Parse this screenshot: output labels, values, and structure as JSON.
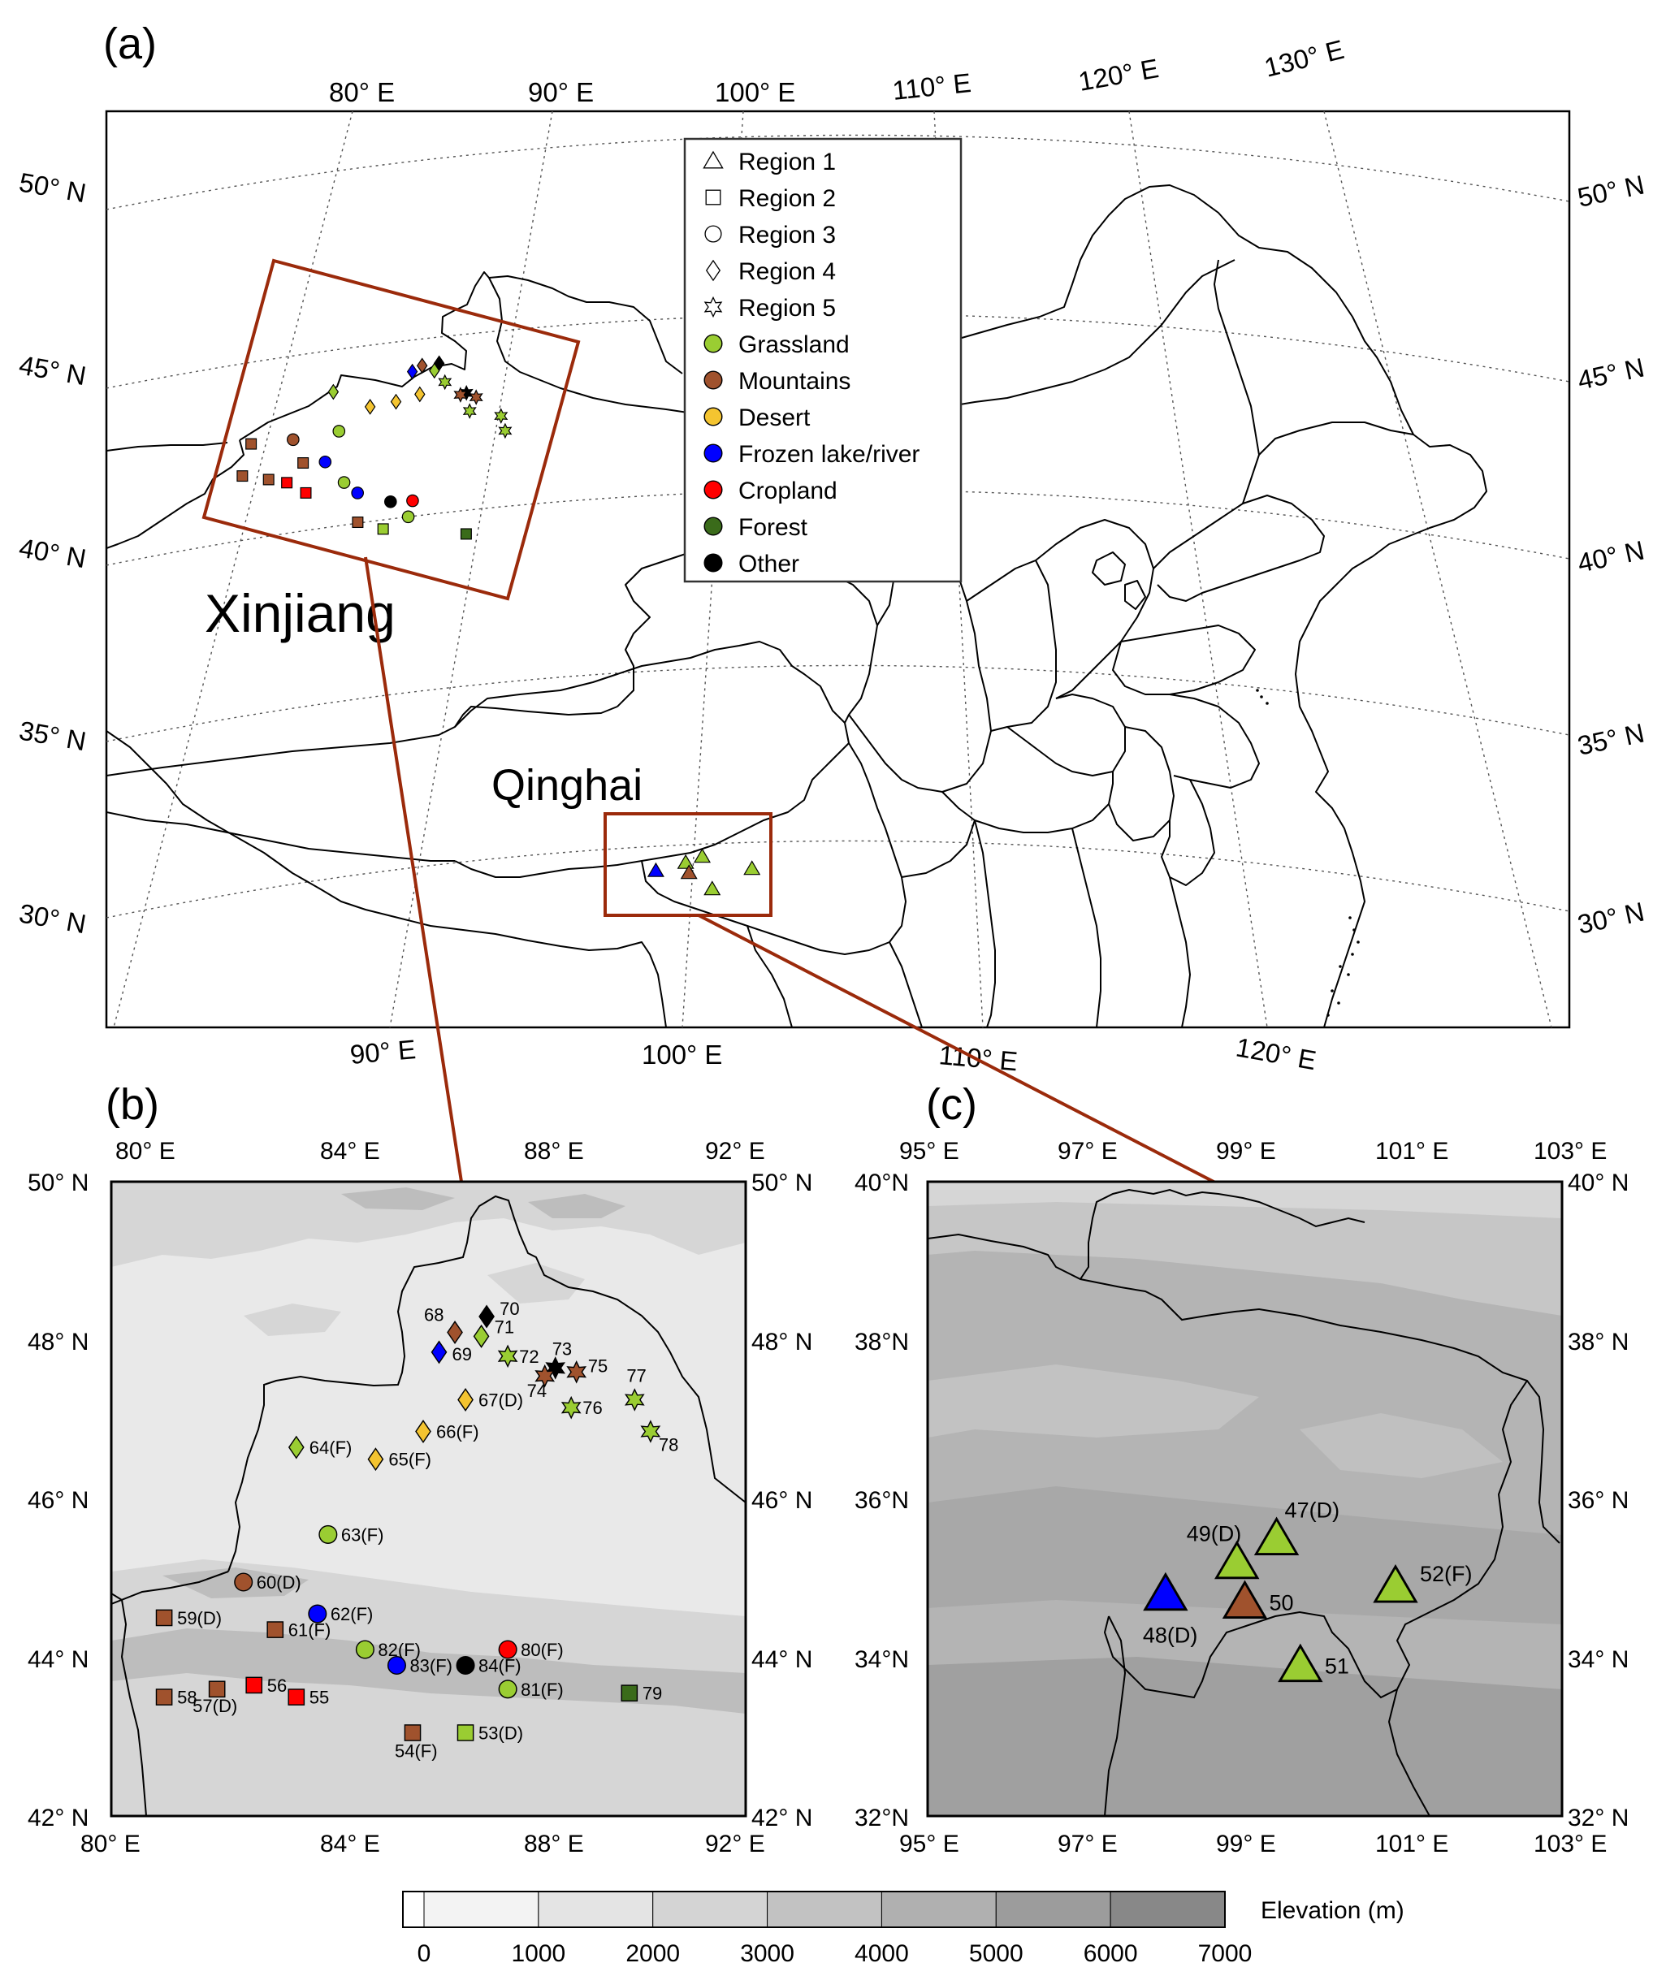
{
  "panels": {
    "a": {
      "label": "(a)",
      "top_lon_ticks": [
        "80° E",
        "90° E",
        "100° E",
        "110° E",
        "120° E",
        "130° E"
      ],
      "bottom_lon_ticks": [
        "90° E",
        "100° E",
        "110° E",
        "120° E"
      ],
      "left_lat_ticks": [
        "50° N",
        "45° N",
        "40° N",
        "35° N",
        "30° N"
      ],
      "right_lat_ticks": [
        "50° N",
        "45° N",
        "40° N",
        "35° N",
        "30° N"
      ],
      "region_labels": {
        "xinjiang": "Xinjiang",
        "qinghai": "Qinghai"
      },
      "legend": {
        "shapes": [
          {
            "symbol": "triangle",
            "label": "Region 1"
          },
          {
            "symbol": "square",
            "label": "Region 2"
          },
          {
            "symbol": "circle",
            "label": "Region 3"
          },
          {
            "symbol": "diamond",
            "label": "Region 4"
          },
          {
            "symbol": "star",
            "label": "Region 5"
          }
        ],
        "colors": [
          {
            "color": "#9acd32",
            "label": "Grassland"
          },
          {
            "color": "#a0522d",
            "label": "Mountains"
          },
          {
            "color": "#f4c430",
            "label": "Desert"
          },
          {
            "color": "#0000ff",
            "label": "Frozen lake/river"
          },
          {
            "color": "#ff0000",
            "label": "Cropland"
          },
          {
            "color": "#3a6b1a",
            "label": "Forest"
          },
          {
            "color": "#000000",
            "label": "Other"
          }
        ]
      }
    },
    "b": {
      "label": "(b)",
      "top_lon_ticks": [
        "80° E",
        "84° E",
        "88° E",
        "92° E"
      ],
      "bottom_lon_ticks": [
        "80° E",
        "84° E",
        "88° E",
        "92° E"
      ],
      "left_lat_ticks": [
        "50° N",
        "48° N",
        "46° N",
        "44° N",
        "42° N"
      ],
      "right_lat_ticks": [
        "50° N",
        "48° N",
        "46° N",
        "44° N",
        "42° N"
      ],
      "sites": [
        {
          "id": "53(D)",
          "lon": 86.7,
          "lat": 43.05,
          "shape": "square",
          "color": "#9acd32"
        },
        {
          "id": "54(F)",
          "lon": 85.7,
          "lat": 43.05,
          "shape": "square",
          "color": "#a0522d"
        },
        {
          "id": "55",
          "lon": 83.5,
          "lat": 43.5,
          "shape": "square",
          "color": "#ff0000"
        },
        {
          "id": "56",
          "lon": 82.7,
          "lat": 43.65,
          "shape": "square",
          "color": "#ff0000"
        },
        {
          "id": "57(D)",
          "lon": 82.0,
          "lat": 43.6,
          "shape": "square",
          "color": "#a0522d"
        },
        {
          "id": "58",
          "lon": 81.0,
          "lat": 43.5,
          "shape": "square",
          "color": "#a0522d"
        },
        {
          "id": "59(D)",
          "lon": 81.0,
          "lat": 44.5,
          "shape": "square",
          "color": "#a0522d"
        },
        {
          "id": "60(D)",
          "lon": 82.5,
          "lat": 44.95,
          "shape": "circle",
          "color": "#a0522d"
        },
        {
          "id": "61(F)",
          "lon": 83.1,
          "lat": 44.35,
          "shape": "square",
          "color": "#a0522d"
        },
        {
          "id": "62(F)",
          "lon": 83.9,
          "lat": 44.55,
          "shape": "circle",
          "color": "#0000ff"
        },
        {
          "id": "63(F)",
          "lon": 84.1,
          "lat": 45.55,
          "shape": "circle",
          "color": "#9acd32"
        },
        {
          "id": "64(F)",
          "lon": 83.5,
          "lat": 46.65,
          "shape": "diamond",
          "color": "#9acd32"
        },
        {
          "id": "65(F)",
          "lon": 85.0,
          "lat": 46.5,
          "shape": "diamond",
          "color": "#f4c430"
        },
        {
          "id": "66(F)",
          "lon": 85.9,
          "lat": 46.85,
          "shape": "diamond",
          "color": "#f4c430"
        },
        {
          "id": "67(D)",
          "lon": 86.7,
          "lat": 47.25,
          "shape": "diamond",
          "color": "#f4c430"
        },
        {
          "id": "68",
          "lon": 86.5,
          "lat": 48.1,
          "shape": "diamond",
          "color": "#a0522d"
        },
        {
          "id": "69",
          "lon": 86.2,
          "lat": 47.85,
          "shape": "diamond",
          "color": "#0000ff"
        },
        {
          "id": "70",
          "lon": 87.1,
          "lat": 48.3,
          "shape": "diamond",
          "color": "#000000"
        },
        {
          "id": "71",
          "lon": 87.0,
          "lat": 48.05,
          "shape": "diamond",
          "color": "#9acd32"
        },
        {
          "id": "72",
          "lon": 87.5,
          "lat": 47.8,
          "shape": "star",
          "color": "#9acd32"
        },
        {
          "id": "73",
          "lon": 88.4,
          "lat": 47.65,
          "shape": "star",
          "color": "#000000"
        },
        {
          "id": "74",
          "lon": 88.2,
          "lat": 47.55,
          "shape": "star",
          "color": "#a0522d"
        },
        {
          "id": "75",
          "lon": 88.8,
          "lat": 47.6,
          "shape": "star",
          "color": "#a0522d"
        },
        {
          "id": "76",
          "lon": 88.7,
          "lat": 47.15,
          "shape": "star",
          "color": "#9acd32"
        },
        {
          "id": "77",
          "lon": 89.9,
          "lat": 47.25,
          "shape": "star",
          "color": "#9acd32"
        },
        {
          "id": "78",
          "lon": 90.2,
          "lat": 46.85,
          "shape": "star",
          "color": "#9acd32"
        },
        {
          "id": "79",
          "lon": 89.8,
          "lat": 43.55,
          "shape": "square",
          "color": "#3a6b1a"
        },
        {
          "id": "80(F)",
          "lon": 87.5,
          "lat": 44.1,
          "shape": "circle",
          "color": "#ff0000"
        },
        {
          "id": "81(F)",
          "lon": 87.5,
          "lat": 43.6,
          "shape": "circle",
          "color": "#9acd32"
        },
        {
          "id": "82(F)",
          "lon": 84.8,
          "lat": 44.1,
          "shape": "circle",
          "color": "#9acd32"
        },
        {
          "id": "83(F)",
          "lon": 85.4,
          "lat": 43.9,
          "shape": "circle",
          "color": "#0000ff"
        },
        {
          "id": "84(F)",
          "lon": 86.7,
          "lat": 43.9,
          "shape": "circle",
          "color": "#000000"
        }
      ]
    },
    "c": {
      "label": "(c)",
      "top_lon_ticks": [
        "95° E",
        "97° E",
        "99° E",
        "101° E",
        "103° E"
      ],
      "bottom_lon_ticks": [
        "95° E",
        "97° E",
        "99° E",
        "101° E",
        "103° E"
      ],
      "left_lat_ticks": [
        "40°N",
        "38°N",
        "36°N",
        "34°N",
        "32°N"
      ],
      "right_lat_ticks": [
        "40° N",
        "38° N",
        "36° N",
        "34° N",
        "32° N"
      ],
      "sites": [
        {
          "id": "47(D)",
          "lon": 99.4,
          "lat": 35.5,
          "shape": "triangle",
          "color": "#9acd32"
        },
        {
          "id": "48(D)",
          "lon": 98.0,
          "lat": 34.8,
          "shape": "triangle",
          "color": "#0000ff"
        },
        {
          "id": "49(D)",
          "lon": 98.9,
          "lat": 35.2,
          "shape": "triangle",
          "color": "#9acd32"
        },
        {
          "id": "50",
          "lon": 99.0,
          "lat": 34.7,
          "shape": "triangle",
          "color": "#a0522d"
        },
        {
          "id": "51",
          "lon": 99.7,
          "lat": 33.9,
          "shape": "triangle",
          "color": "#9acd32"
        },
        {
          "id": "52(F)",
          "lon": 100.9,
          "lat": 34.9,
          "shape": "triangle",
          "color": "#9acd32"
        }
      ]
    }
  },
  "colorbar": {
    "title": "Elevation (m)",
    "ticks": [
      "0",
      "1000",
      "2000",
      "3000",
      "4000",
      "5000",
      "6000",
      "7000"
    ],
    "range_m": [
      0,
      7000
    ],
    "colors": [
      "#ffffff",
      "#f3f3f3",
      "#e4e4e4",
      "#d4d4d4",
      "#c2c2c2",
      "#b0b0b0",
      "#9c9c9c",
      "#888888"
    ]
  }
}
